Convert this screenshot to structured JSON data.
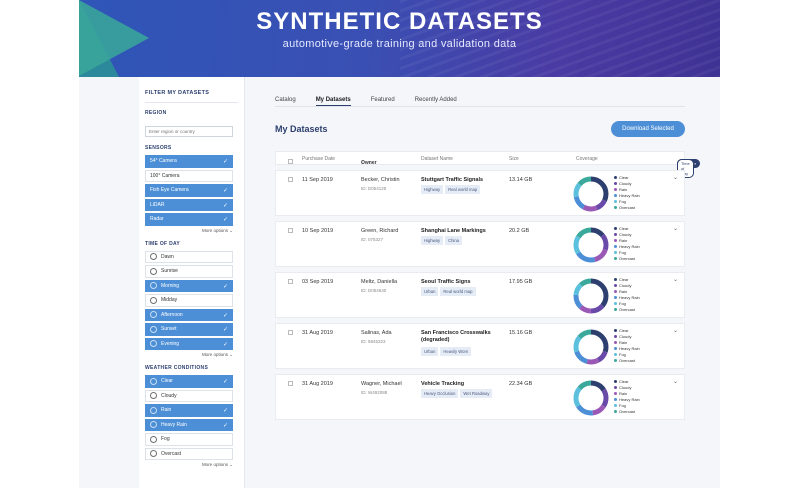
{
  "banner": {
    "title": "SYNTHETIC DATASETS",
    "subtitle": "automotive-grade training and validation data"
  },
  "sidebar": {
    "heading": "FILTER MY DATASETS",
    "region": {
      "title": "REGION",
      "placeholder": "Enter region or country"
    },
    "sensors": {
      "title": "SENSORS",
      "items": [
        {
          "label": "54° Camera",
          "on": true
        },
        {
          "label": "100° Camera",
          "on": false
        },
        {
          "label": "Fish Eye Camera",
          "on": true
        },
        {
          "label": "LiDAR",
          "on": true
        },
        {
          "label": "Radar",
          "on": true
        }
      ]
    },
    "time_of_day": {
      "title": "TIME OF DAY",
      "items": [
        {
          "label": "Dawn",
          "on": false
        },
        {
          "label": "Sunrise",
          "on": false
        },
        {
          "label": "Morning",
          "on": true
        },
        {
          "label": "Midday",
          "on": false
        },
        {
          "label": "Afternoon",
          "on": true
        },
        {
          "label": "Sunset",
          "on": true
        },
        {
          "label": "Evening",
          "on": true
        }
      ]
    },
    "weather": {
      "title": "WEATHER CONDITIONS",
      "items": [
        {
          "label": "Clear",
          "on": true
        },
        {
          "label": "Cloudy",
          "on": false
        },
        {
          "label": "Rain",
          "on": true
        },
        {
          "label": "Heavy Rain",
          "on": true
        },
        {
          "label": "Fog",
          "on": false
        },
        {
          "label": "Overcast",
          "on": false
        }
      ]
    },
    "more_options": "More options"
  },
  "tabs": [
    "Catalog",
    "My Datasets",
    "Featured",
    "Recently Added"
  ],
  "active_tab": 1,
  "page_title": "My Datasets",
  "download_label": "Download Selected",
  "table": {
    "headers": {
      "purchase_date": "Purchase Date",
      "owner": "Owner",
      "dataset_name": "Dataset Name",
      "size": "Size",
      "coverage": "Coverage"
    },
    "coverage_toggle": [
      "Weather",
      "Time of Day"
    ],
    "legend": [
      "Clear",
      "Cloudy",
      "Rain",
      "Heavy Rain",
      "Fog",
      "Overcast"
    ],
    "legend_colors": [
      "#2c3f6e",
      "#6a4aa8",
      "#9b59b6",
      "#4d8fd6",
      "#5bc0de",
      "#3aa89a"
    ],
    "rows": [
      {
        "date": "11 Sep 2019",
        "owner": "Becker, Christin",
        "id": "ID: D054125",
        "name": "Stuttgart Traffic Signals",
        "tags": [
          "Highway",
          "Real world map"
        ],
        "size": "13.14 GB"
      },
      {
        "date": "10 Sep 2019",
        "owner": "Green, Richard",
        "id": "ID: 075327",
        "name": "Shanghai Lane Markings",
        "tags": [
          "Highway",
          "China"
        ],
        "size": "20.2 GB"
      },
      {
        "date": "03 Sep 2019",
        "owner": "Meltz, Daniella",
        "id": "ID: D054630",
        "name": "Seoul Traffic Signs",
        "tags": [
          "Urban",
          "Real world map"
        ],
        "size": "17.95 GB"
      },
      {
        "date": "31 Aug 2019",
        "owner": "Salinas, Ada",
        "id": "ID: 5845323",
        "name": "San Francisco Crosswalks (degraded)",
        "tags": [
          "Urban",
          "Heavily Worn"
        ],
        "size": "15.16 GB"
      },
      {
        "date": "31 Aug 2019",
        "owner": "Wagner, Michael",
        "id": "ID: W492088",
        "name": "Vehicle Tracking",
        "tags": [
          "Heavy Occlusion",
          "Wet Roadway"
        ],
        "size": "22.34 GB"
      }
    ]
  }
}
